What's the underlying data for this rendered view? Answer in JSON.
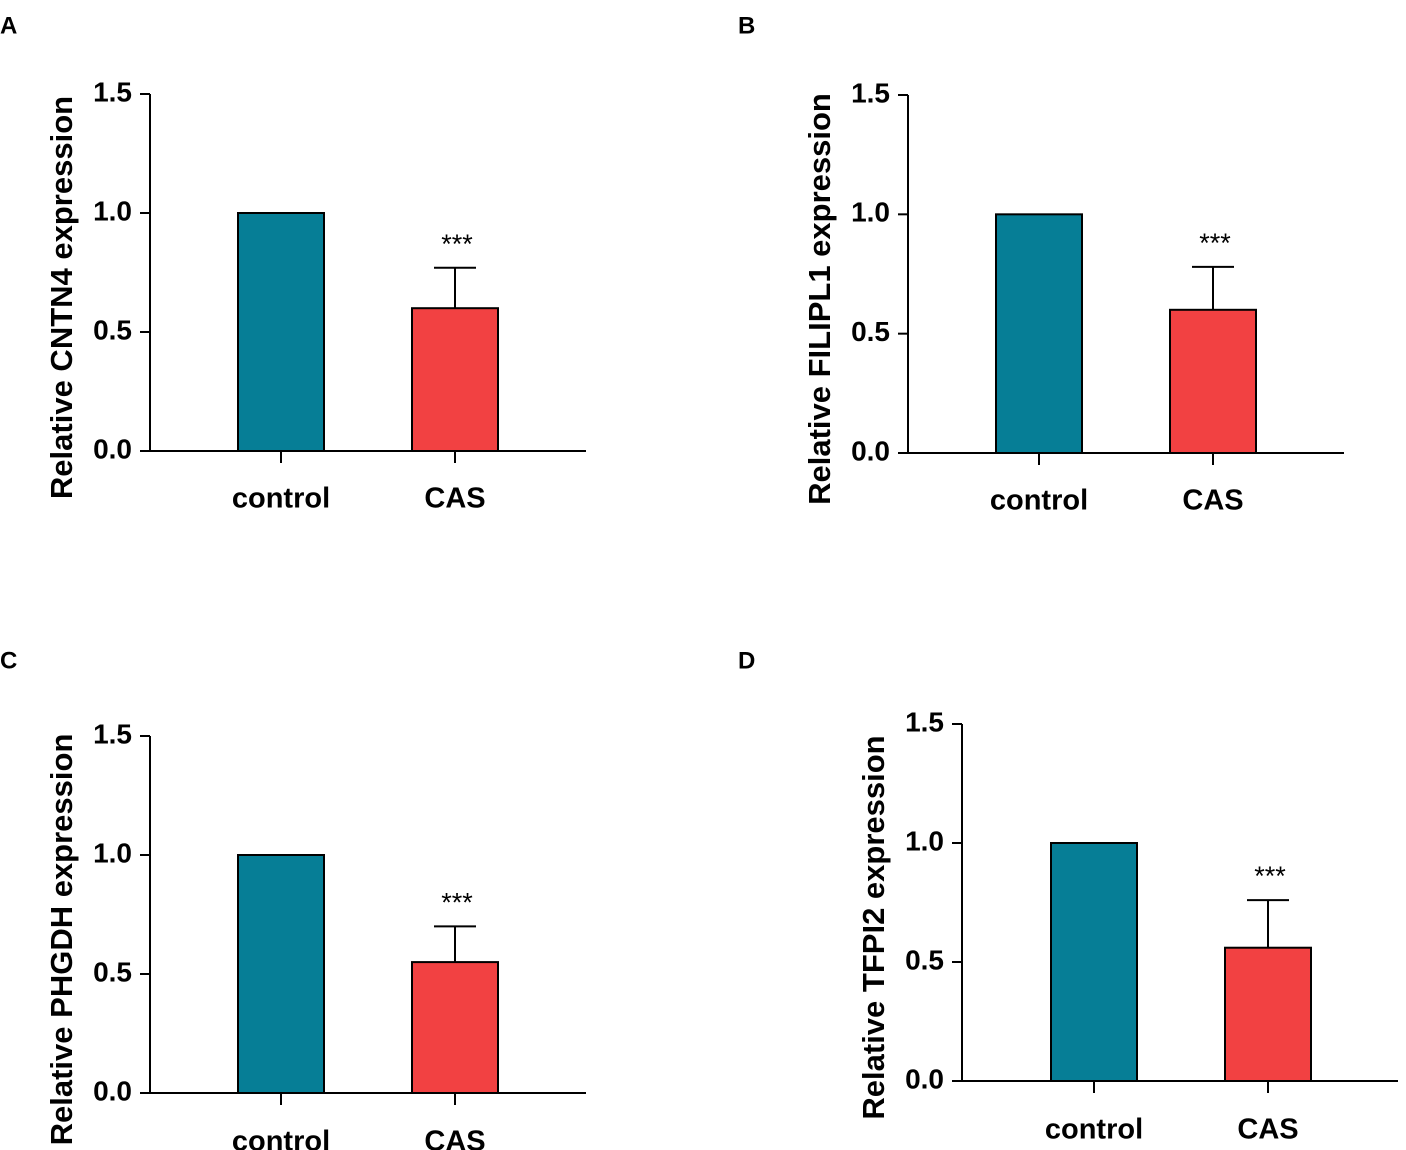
{
  "chart_data": [
    {
      "panel": "A",
      "type": "bar",
      "title": "",
      "xlabel": "",
      "ylabel": "Relative CNTN4 expression",
      "ylim": [
        0,
        1.5
      ],
      "yticks": [
        "0.0",
        "0.5",
        "1.0",
        "1.5"
      ],
      "categories": [
        "control",
        "CAS"
      ],
      "values": [
        1.0,
        0.6
      ],
      "errors": [
        0,
        0.17
      ],
      "colors": [
        "#067e96",
        "#f24142"
      ],
      "annotations": [
        "",
        "***"
      ]
    },
    {
      "panel": "B",
      "type": "bar",
      "title": "",
      "xlabel": "",
      "ylabel": "Relative FILIPL1 expression",
      "ylim": [
        0,
        1.5
      ],
      "yticks": [
        "0.0",
        "0.5",
        "1.0",
        "1.5"
      ],
      "categories": [
        "control",
        "CAS"
      ],
      "values": [
        1.0,
        0.6
      ],
      "errors": [
        0,
        0.18
      ],
      "colors": [
        "#067e96",
        "#f24142"
      ],
      "annotations": [
        "",
        "***"
      ]
    },
    {
      "panel": "C",
      "type": "bar",
      "title": "",
      "xlabel": "",
      "ylabel": "Relative PHGDH expression",
      "ylim": [
        0,
        1.5
      ],
      "yticks": [
        "0.0",
        "0.5",
        "1.0",
        "1.5"
      ],
      "categories": [
        "control",
        "CAS"
      ],
      "values": [
        1.0,
        0.55
      ],
      "errors": [
        0,
        0.15
      ],
      "colors": [
        "#067e96",
        "#f24142"
      ],
      "annotations": [
        "",
        "***"
      ]
    },
    {
      "panel": "D",
      "type": "bar",
      "title": "",
      "xlabel": "",
      "ylabel": "Relative TFPI2 expression",
      "ylim": [
        0,
        1.5
      ],
      "yticks": [
        "0.0",
        "0.5",
        "1.0",
        "1.5"
      ],
      "categories": [
        "control",
        "CAS"
      ],
      "values": [
        1.0,
        0.56
      ],
      "errors": [
        0,
        0.2
      ],
      "colors": [
        "#067e96",
        "#f24142"
      ],
      "annotations": [
        "",
        "***"
      ]
    }
  ]
}
